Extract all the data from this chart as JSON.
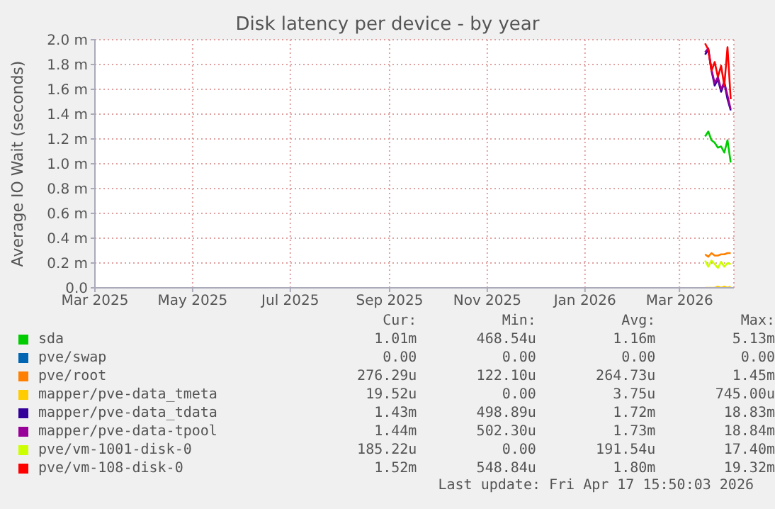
{
  "chart_data": {
    "type": "line",
    "title": "Disk latency per device - by year",
    "ylabel": "Average IO Wait (seconds)",
    "x": [
      "2026-03-17",
      "2026-03-19",
      "2026-03-21",
      "2026-03-23",
      "2026-03-25",
      "2026-03-27",
      "2026-03-29",
      "2026-03-31",
      "2026-04-02"
    ],
    "xlim": [
      "2025-03-01",
      "2026-04-04"
    ],
    "xticks": [
      {
        "value": "2025-03-01",
        "label": "Mar 2025"
      },
      {
        "value": "2025-05-01",
        "label": "May 2025"
      },
      {
        "value": "2025-07-01",
        "label": "Jul 2025"
      },
      {
        "value": "2025-09-01",
        "label": "Sep 2025"
      },
      {
        "value": "2025-11-01",
        "label": "Nov 2025"
      },
      {
        "value": "2026-01-01",
        "label": "Jan 2026"
      },
      {
        "value": "2026-03-01",
        "label": "Mar 2026"
      }
    ],
    "ylim": [
      0,
      2
    ],
    "yticks": [
      {
        "value": 0,
        "label": "0.0"
      },
      {
        "value": 0.2,
        "label": "0.2 m"
      },
      {
        "value": 0.4,
        "label": "0.4 m"
      },
      {
        "value": 0.6,
        "label": "0.6 m"
      },
      {
        "value": 0.8,
        "label": "0.8 m"
      },
      {
        "value": 1,
        "label": "1.0 m"
      },
      {
        "value": 1.2,
        "label": "1.2 m"
      },
      {
        "value": 1.4,
        "label": "1.4 m"
      },
      {
        "value": 1.6,
        "label": "1.6 m"
      },
      {
        "value": 1.8,
        "label": "1.8 m"
      },
      {
        "value": 2,
        "label": "2.0 m"
      }
    ],
    "grid": true,
    "legend": "bottom",
    "marker": "none",
    "line_style": "solid",
    "series": [
      {
        "name": "sda",
        "color": "#00cc00",
        "values": [
          1.22,
          1.26,
          1.19,
          1.17,
          1.13,
          1.14,
          1.09,
          1.19,
          1.01
        ]
      },
      {
        "name": "pve/swap",
        "color": "#0066b3",
        "values": [
          null,
          null,
          null,
          null,
          null,
          null,
          null,
          null,
          null
        ]
      },
      {
        "name": "pve/root",
        "color": "#ff8000",
        "values": [
          0.27,
          0.25,
          0.28,
          0.26,
          0.26,
          0.27,
          0.27,
          0.28,
          0.28
        ]
      },
      {
        "name": "mapper/pve-data_tmeta",
        "color": "#ffcc00",
        "values": [
          0,
          0,
          0,
          0,
          0.01,
          0,
          0.01,
          0,
          0.01
        ]
      },
      {
        "name": "mapper/pve-data_tdata",
        "color": "#330099",
        "values": [
          1.88,
          1.92,
          1.75,
          1.63,
          1.68,
          1.58,
          1.65,
          1.52,
          1.43
        ]
      },
      {
        "name": "mapper/pve-data-tpool",
        "color": "#990099",
        "values": [
          1.9,
          1.93,
          1.76,
          1.65,
          1.7,
          1.6,
          1.66,
          1.55,
          1.44
        ]
      },
      {
        "name": "pve/vm-1001-disk-0",
        "color": "#ccff00",
        "values": [
          0.22,
          0.17,
          0.22,
          0.19,
          0.16,
          0.21,
          0.17,
          0.2,
          0.19
        ]
      },
      {
        "name": "pve/vm-108-disk-0",
        "color": "#ff0000",
        "values": [
          1.97,
          1.92,
          1.75,
          1.82,
          1.7,
          1.79,
          1.63,
          1.94,
          1.52
        ]
      }
    ],
    "annotations": [
      "Cur:",
      "Min:",
      "Avg:",
      "Max:",
      "1.01m",
      "468.54u",
      "1.16m",
      "5.13m",
      "0.00",
      "0.00",
      "0.00",
      "0.00",
      "276.29u",
      "122.10u",
      "264.73u",
      "1.45m",
      "19.52u",
      "0.00",
      "3.75u",
      "745.00u",
      "1.43m",
      "498.89u",
      "1.72m",
      "18.83m",
      "1.44m",
      "502.30u",
      "1.73m",
      "18.84m",
      "185.22u",
      "0.00",
      "191.54u",
      "17.40m",
      "1.52m",
      "548.84u",
      "1.80m",
      "19.32m",
      "Last update: Fri Apr 17 15:50:03 2026"
    ]
  }
}
